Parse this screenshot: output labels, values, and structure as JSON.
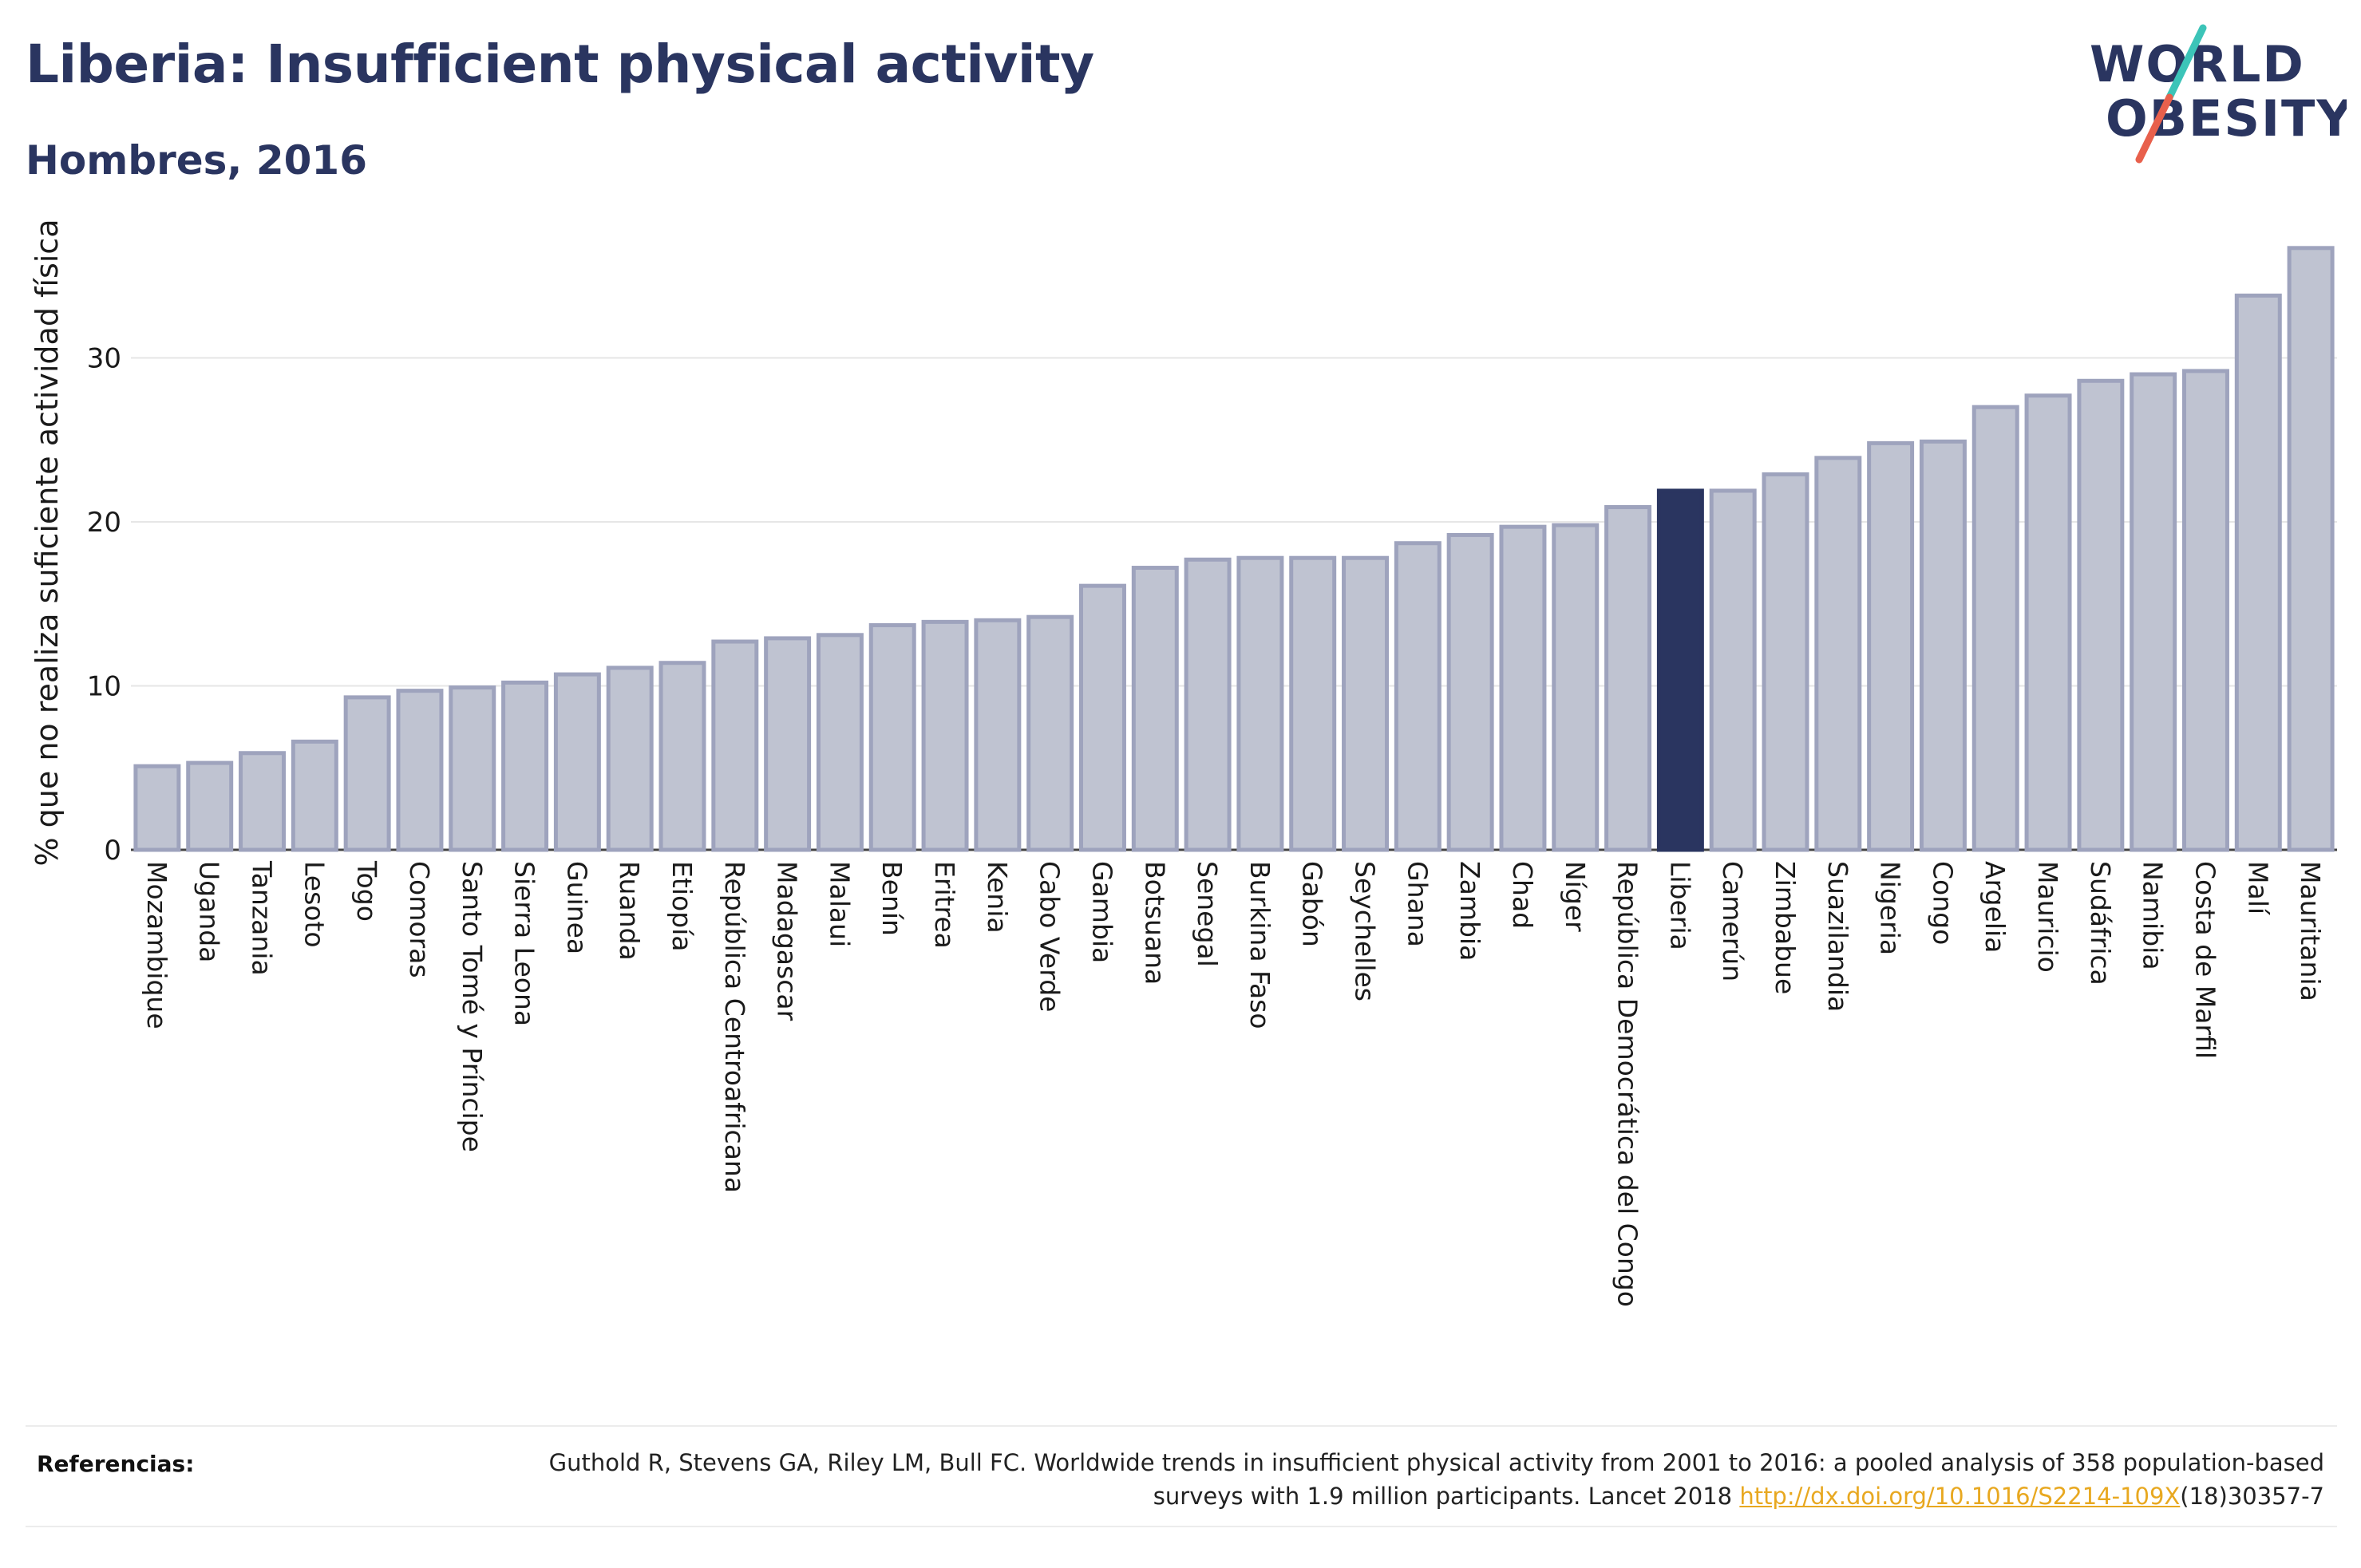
{
  "title": "Liberia: Insufficient physical activity",
  "subtitle": "Hombres, 2016",
  "logo": {
    "line1": "WORLD",
    "line2": "OBESITY",
    "text_color": "#2a3560",
    "slash_color_top": "#3cc4b8",
    "slash_color_bottom": "#e8604c"
  },
  "colors": {
    "bar_default": "#bfc3d1",
    "bar_stroke": "#9ea3bd",
    "bar_highlight": "#2a3560",
    "grid": "#e6e6e6",
    "title": "#2a3560"
  },
  "references": {
    "label": "Referencias:",
    "text_before": "Guthold R, Stevens GA, Riley LM, Bull FC. Worldwide trends in insufficient physical activity from 2001 to 2016: a pooled analysis of 358 population-based surveys with 1.9 million participants. Lancet 2018 ",
    "link_text": "http://dx.doi.org/10.1016/S2214-109X",
    "text_after": "(18)30357-7"
  },
  "chart_data": {
    "type": "bar",
    "ylabel": "% que no realiza suficiente actividad física",
    "ylim": [
      0,
      37
    ],
    "yticks": [
      0,
      10,
      20,
      30
    ],
    "grid": true,
    "highlight": "Liberia",
    "categories": [
      "Mozambique",
      "Uganda",
      "Tanzania",
      "Lesoto",
      "Togo",
      "Comoras",
      "Santo Tomé y Príncipe",
      "Sierra Leona",
      "Guinea",
      "Ruanda",
      "Etiopía",
      "República Centroafricana",
      "Madagascar",
      "Malaui",
      "Benín",
      "Eritrea",
      "Kenia",
      "Cabo Verde",
      "Gambia",
      "Botsuana",
      "Senegal",
      "Burkina Faso",
      "Gabón",
      "Seychelles",
      "Ghana",
      "Zambia",
      "Chad",
      "Níger",
      "República Democrática del Congo",
      "Liberia",
      "Camerún",
      "Zimbabue",
      "Suazilandia",
      "Nigeria",
      "Congo",
      "Argelia",
      "Mauricio",
      "Sudáfrica",
      "Namibia",
      "Costa de Marfil",
      "Malí",
      "Mauritania"
    ],
    "values": [
      5.1,
      5.3,
      5.9,
      6.6,
      9.3,
      9.7,
      9.9,
      10.2,
      10.7,
      11.1,
      11.4,
      12.7,
      12.9,
      13.1,
      13.7,
      13.9,
      14.0,
      14.2,
      16.1,
      17.2,
      17.7,
      17.8,
      17.8,
      17.8,
      18.7,
      19.2,
      19.7,
      19.8,
      20.9,
      21.9,
      21.9,
      22.9,
      23.9,
      24.8,
      24.9,
      27.0,
      27.7,
      28.6,
      29.0,
      29.2,
      33.8,
      36.7
    ]
  }
}
